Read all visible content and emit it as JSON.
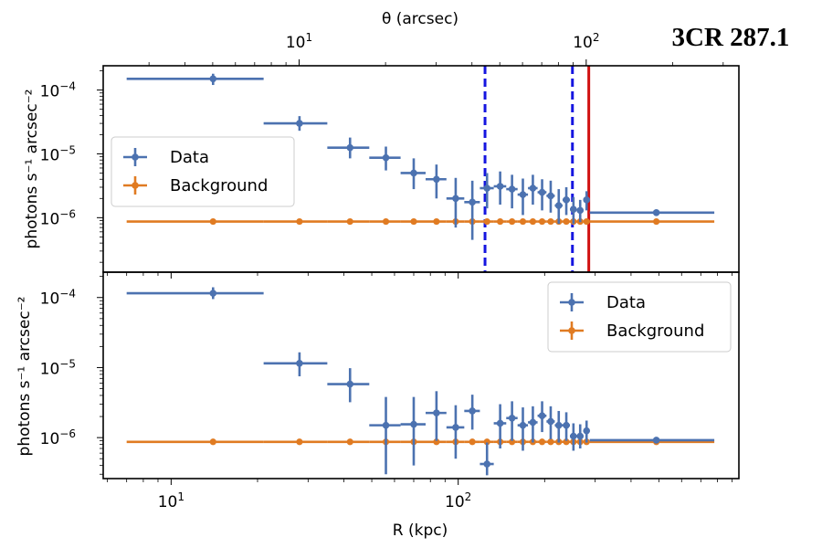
{
  "figure": {
    "title": "3CR 287.1"
  },
  "colors": {
    "data": "#4c72b0",
    "background": "#e07b22",
    "vline_dashed": "#1515e0",
    "vline_solid": "#d01010"
  },
  "chart_data": [
    {
      "type": "scatter",
      "panel": "top",
      "yscale": "log",
      "xscale": "log",
      "xlim": [
        5.8,
        950
      ],
      "ylim": [
        1.4e-07,
        0.00024
      ],
      "xlabel": "",
      "ylabel": "photons s⁻¹ arcsec⁻²",
      "ytick_labels": [
        "10⁻⁴",
        "10⁻⁵",
        "10⁻⁶"
      ],
      "top_axis": {
        "label": "θ (arcsec)",
        "tick_labels": [
          "10¹",
          "10²"
        ],
        "arcsec_per_kpc": 0.3582
      },
      "vlines": [
        {
          "x": 124,
          "style": "dashed",
          "color": "#1515e0"
        },
        {
          "x": 250,
          "style": "dashed",
          "color": "#1515e0"
        },
        {
          "x": 285,
          "style": "solid",
          "color": "#d01010"
        }
      ],
      "legend": {
        "position": "center-left",
        "entries": [
          "Data",
          "Background"
        ]
      },
      "series": [
        {
          "name": "Data",
          "color": "#4c72b0",
          "points": [
            {
              "x": 14,
              "xlo": 7,
              "xhi": 21,
              "y": 0.00015,
              "ylo": 0.00012,
              "yhi": 0.00018
            },
            {
              "x": 28,
              "xlo": 21,
              "xhi": 35,
              "y": 3e-05,
              "ylo": 2.3e-05,
              "yhi": 3.9e-05
            },
            {
              "x": 42,
              "xlo": 35,
              "xhi": 49,
              "y": 1.25e-05,
              "ylo": 8.5e-06,
              "yhi": 1.8e-05
            },
            {
              "x": 56,
              "xlo": 49,
              "xhi": 63,
              "y": 8.7e-06,
              "ylo": 5.5e-06,
              "yhi": 1.3e-05
            },
            {
              "x": 70,
              "xlo": 63,
              "xhi": 77,
              "y": 5e-06,
              "ylo": 2.8e-06,
              "yhi": 8.5e-06
            },
            {
              "x": 84,
              "xlo": 77,
              "xhi": 91,
              "y": 4e-06,
              "ylo": 2e-06,
              "yhi": 6.8e-06
            },
            {
              "x": 98,
              "xlo": 91,
              "xhi": 105,
              "y": 2e-06,
              "ylo": 7e-07,
              "yhi": 4.2e-06
            },
            {
              "x": 112,
              "xlo": 105,
              "xhi": 119,
              "y": 1.75e-06,
              "ylo": 4.5e-07,
              "yhi": 3.8e-06
            },
            {
              "x": 126,
              "xlo": 119,
              "xhi": 133,
              "y": 2.9e-06,
              "ylo": 1.4e-06,
              "yhi": 5e-06
            },
            {
              "x": 140,
              "xlo": 133,
              "xhi": 147,
              "y": 3.1e-06,
              "ylo": 1.6e-06,
              "yhi": 5.3e-06
            },
            {
              "x": 154,
              "xlo": 147,
              "xhi": 161,
              "y": 2.8e-06,
              "ylo": 1.4e-06,
              "yhi": 4.7e-06
            },
            {
              "x": 168,
              "xlo": 161,
              "xhi": 175,
              "y": 2.3e-06,
              "ylo": 1.1e-06,
              "yhi": 4.1e-06
            },
            {
              "x": 182,
              "xlo": 175,
              "xhi": 189,
              "y": 2.9e-06,
              "ylo": 1.6e-06,
              "yhi": 4.7e-06
            },
            {
              "x": 196,
              "xlo": 189,
              "xhi": 203,
              "y": 2.5e-06,
              "ylo": 1.3e-06,
              "yhi": 4e-06
            },
            {
              "x": 210,
              "xlo": 203,
              "xhi": 217,
              "y": 2.2e-06,
              "ylo": 1.2e-06,
              "yhi": 3.8e-06
            },
            {
              "x": 224,
              "xlo": 217,
              "xhi": 231,
              "y": 1.55e-06,
              "ylo": 8e-07,
              "yhi": 2.8e-06
            },
            {
              "x": 238,
              "xlo": 231,
              "xhi": 245,
              "y": 1.9e-06,
              "ylo": 1.1e-06,
              "yhi": 3e-06
            },
            {
              "x": 252,
              "xlo": 245,
              "xhi": 259,
              "y": 1.35e-06,
              "ylo": 8e-07,
              "yhi": 2.1e-06
            },
            {
              "x": 266,
              "xlo": 259,
              "xhi": 273,
              "y": 1.3e-06,
              "ylo": 8.5e-07,
              "yhi": 1.9e-06
            },
            {
              "x": 280,
              "xlo": 273,
              "xhi": 287,
              "y": 1.9e-06,
              "ylo": 1.3e-06,
              "yhi": 2.6e-06
            },
            {
              "x": 490,
              "xlo": 287,
              "xhi": 780,
              "y": 1.2e-06,
              "ylo": 1.1e-06,
              "yhi": 1.3e-06
            }
          ]
        },
        {
          "name": "Background",
          "color": "#e07b22",
          "bins": [
            [
              7,
              21
            ],
            [
              21,
              35
            ],
            [
              35,
              49
            ],
            [
              49,
              63
            ],
            [
              63,
              77
            ],
            [
              77,
              91
            ],
            [
              91,
              105
            ],
            [
              105,
              119
            ],
            [
              119,
              133
            ],
            [
              133,
              147
            ],
            [
              147,
              161
            ],
            [
              161,
              175
            ],
            [
              175,
              189
            ],
            [
              189,
              203
            ],
            [
              203,
              217
            ],
            [
              217,
              231
            ],
            [
              231,
              245
            ],
            [
              245,
              259
            ],
            [
              259,
              273
            ],
            [
              273,
              287
            ],
            [
              287,
              780
            ]
          ],
          "x": [
            14,
            28,
            42,
            56,
            70,
            84,
            98,
            112,
            126,
            140,
            154,
            168,
            182,
            196,
            210,
            224,
            238,
            252,
            266,
            280,
            490
          ],
          "y": [
            8.7e-07,
            8.7e-07,
            8.7e-07,
            8.7e-07,
            8.7e-07,
            8.7e-07,
            8.7e-07,
            8.7e-07,
            8.7e-07,
            8.7e-07,
            8.7e-07,
            8.7e-07,
            8.7e-07,
            8.7e-07,
            8.7e-07,
            8.7e-07,
            8.7e-07,
            8.7e-07,
            8.7e-07,
            8.7e-07,
            8.7e-07
          ]
        }
      ]
    },
    {
      "type": "scatter",
      "panel": "bottom",
      "yscale": "log",
      "xscale": "log",
      "xlim": [
        5.8,
        950
      ],
      "ylim": [
        2.6e-07,
        0.00023
      ],
      "xlabel": "R (kpc)",
      "ylabel": "photons s⁻¹ arcsec⁻²",
      "xtick_labels": [
        "10¹",
        "10²"
      ],
      "ytick_labels": [
        "10⁻⁴",
        "10⁻⁵",
        "10⁻⁶"
      ],
      "legend": {
        "position": "top-right",
        "entries": [
          "Data",
          "Background"
        ]
      },
      "series": [
        {
          "name": "Data",
          "color": "#4c72b0",
          "points": [
            {
              "x": 14,
              "xlo": 7,
              "xhi": 21,
              "y": 0.000115,
              "ylo": 9.5e-05,
              "yhi": 0.00014
            },
            {
              "x": 28,
              "xlo": 21,
              "xhi": 35,
              "y": 1.15e-05,
              "ylo": 7.5e-06,
              "yhi": 1.65e-05
            },
            {
              "x": 42,
              "xlo": 35,
              "xhi": 49,
              "y": 5.8e-06,
              "ylo": 3.2e-06,
              "yhi": 9.8e-06
            },
            {
              "x": 56,
              "xlo": 49,
              "xhi": 63,
              "y": 1.5e-06,
              "ylo": 3e-07,
              "yhi": 3.8e-06
            },
            {
              "x": 70,
              "xlo": 63,
              "xhi": 77,
              "y": 1.55e-06,
              "ylo": 4e-07,
              "yhi": 3.8e-06
            },
            {
              "x": 84,
              "xlo": 77,
              "xhi": 91,
              "y": 2.25e-06,
              "ylo": 9e-07,
              "yhi": 4.6e-06
            },
            {
              "x": 98,
              "xlo": 91,
              "xhi": 105,
              "y": 1.4e-06,
              "ylo": 5e-07,
              "yhi": 2.9e-06
            },
            {
              "x": 112,
              "xlo": 105,
              "xhi": 119,
              "y": 2.4e-06,
              "ylo": 1.3e-06,
              "yhi": 4.1e-06
            },
            {
              "x": 126,
              "xlo": 119,
              "xhi": 133,
              "y": 4.2e-07,
              "ylo": 2.9e-07,
              "yhi": 8.5e-07
            },
            {
              "x": 140,
              "xlo": 133,
              "xhi": 147,
              "y": 1.6e-06,
              "ylo": 7e-07,
              "yhi": 3e-06
            },
            {
              "x": 154,
              "xlo": 147,
              "xhi": 161,
              "y": 1.9e-06,
              "ylo": 9e-07,
              "yhi": 3.3e-06
            },
            {
              "x": 168,
              "xlo": 161,
              "xhi": 175,
              "y": 1.5e-06,
              "ylo": 6.5e-07,
              "yhi": 2.7e-06
            },
            {
              "x": 182,
              "xlo": 175,
              "xhi": 189,
              "y": 1.65e-06,
              "ylo": 8.5e-07,
              "yhi": 2.8e-06
            },
            {
              "x": 196,
              "xlo": 189,
              "xhi": 203,
              "y": 2.05e-06,
              "ylo": 1.2e-06,
              "yhi": 3.3e-06
            },
            {
              "x": 210,
              "xlo": 203,
              "xhi": 217,
              "y": 1.7e-06,
              "ylo": 9.5e-07,
              "yhi": 2.8e-06
            },
            {
              "x": 224,
              "xlo": 217,
              "xhi": 231,
              "y": 1.5e-06,
              "ylo": 8.5e-07,
              "yhi": 2.4e-06
            },
            {
              "x": 238,
              "xlo": 231,
              "xhi": 245,
              "y": 1.5e-06,
              "ylo": 9e-07,
              "yhi": 2.3e-06
            },
            {
              "x": 252,
              "xlo": 245,
              "xhi": 259,
              "y": 1.05e-06,
              "ylo": 6.5e-07,
              "yhi": 1.6e-06
            },
            {
              "x": 266,
              "xlo": 259,
              "xhi": 273,
              "y": 1.05e-06,
              "ylo": 7e-07,
              "yhi": 1.55e-06
            },
            {
              "x": 280,
              "xlo": 273,
              "xhi": 287,
              "y": 1.25e-06,
              "ylo": 8.5e-07,
              "yhi": 1.75e-06
            },
            {
              "x": 490,
              "xlo": 287,
              "xhi": 780,
              "y": 9.2e-07,
              "ylo": 8.5e-07,
              "yhi": 1e-06
            }
          ]
        },
        {
          "name": "Background",
          "color": "#e07b22",
          "bins": [
            [
              7,
              21
            ],
            [
              21,
              35
            ],
            [
              35,
              49
            ],
            [
              49,
              63
            ],
            [
              63,
              77
            ],
            [
              77,
              91
            ],
            [
              91,
              105
            ],
            [
              105,
              119
            ],
            [
              119,
              133
            ],
            [
              133,
              147
            ],
            [
              147,
              161
            ],
            [
              161,
              175
            ],
            [
              175,
              189
            ],
            [
              189,
              203
            ],
            [
              203,
              217
            ],
            [
              217,
              231
            ],
            [
              231,
              245
            ],
            [
              245,
              259
            ],
            [
              259,
              273
            ],
            [
              273,
              287
            ],
            [
              287,
              780
            ]
          ],
          "x": [
            14,
            28,
            42,
            56,
            70,
            84,
            98,
            112,
            126,
            140,
            154,
            168,
            182,
            196,
            210,
            224,
            238,
            252,
            266,
            280,
            490
          ],
          "y": [
            8.7e-07,
            8.7e-07,
            8.7e-07,
            8.7e-07,
            8.7e-07,
            8.7e-07,
            8.7e-07,
            8.7e-07,
            8.7e-07,
            8.7e-07,
            8.7e-07,
            8.7e-07,
            8.7e-07,
            8.7e-07,
            8.7e-07,
            8.7e-07,
            8.7e-07,
            8.7e-07,
            8.7e-07,
            8.7e-07,
            8.7e-07
          ]
        }
      ]
    }
  ]
}
